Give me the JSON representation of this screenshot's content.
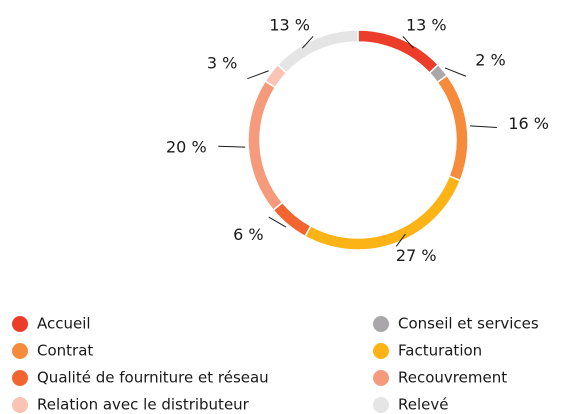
{
  "chart_data": {
    "type": "pie",
    "categories": [
      "Accueil",
      "Conseil et services",
      "Contrat",
      "Facturation",
      "Qualité de fourniture et réseau",
      "Recouvrement",
      "Relation avec le distributeur",
      "Relevé"
    ],
    "values": [
      13,
      2,
      16,
      27,
      6,
      20,
      3,
      13
    ],
    "value_labels": [
      "13 %",
      "2 %",
      "16 %",
      "27 %",
      "6 %",
      "20 %",
      "3 %",
      "13 %"
    ],
    "colors": [
      "#ec3d2b",
      "#a9a7aa",
      "#f68b3b",
      "#fbb315",
      "#f26530",
      "#f59a7b",
      "#fbc3b3",
      "#e6e5e6"
    ]
  }
}
